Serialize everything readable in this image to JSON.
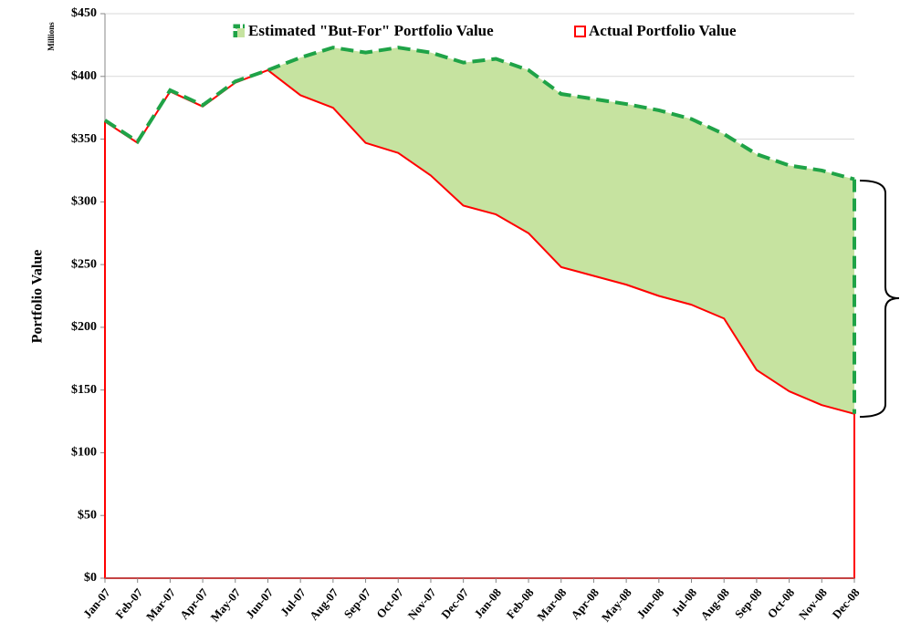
{
  "chart_data": {
    "type": "line",
    "y_label": "Portfolio Value",
    "y_unit_label": "Millions",
    "categories": [
      "Jan-07",
      "Feb-07",
      "Mar-07",
      "Apr-07",
      "May-07",
      "Jun-07",
      "Jul-07",
      "Aug-07",
      "Sep-07",
      "Oct-07",
      "Nov-07",
      "Dec-07",
      "Jan-08",
      "Feb-08",
      "Mar-08",
      "Apr-08",
      "May-08",
      "Jun-08",
      "Jul-08",
      "Aug-08",
      "Sep-08",
      "Oct-08",
      "Nov-08",
      "Dec-08"
    ],
    "series": [
      {
        "name": "Estimated \"But-For\" Portfolio Value",
        "color": "#1fa347",
        "fill": "#c6e3a0",
        "values": [
          365,
          348,
          389,
          377,
          396,
          405,
          415,
          423,
          419,
          423,
          419,
          411,
          414,
          405,
          386,
          382,
          378,
          373,
          366,
          354,
          338,
          329,
          325,
          318
        ]
      },
      {
        "name": "Actual Portfolio Value",
        "color": "#ff0000",
        "values": [
          364,
          347,
          388,
          376,
          395,
          405,
          385,
          375,
          347,
          339,
          321,
          297,
          290,
          275,
          248,
          241,
          234,
          225,
          218,
          207,
          166,
          149,
          138,
          131
        ]
      }
    ],
    "ylim": [
      0,
      450
    ],
    "yticks": [
      {
        "value": 0,
        "label": "$0"
      },
      {
        "value": 50,
        "label": "$50"
      },
      {
        "value": 100,
        "label": "$100"
      },
      {
        "value": 150,
        "label": "$150"
      },
      {
        "value": 200,
        "label": "$200"
      },
      {
        "value": 250,
        "label": "$250"
      },
      {
        "value": 300,
        "label": "$300"
      },
      {
        "value": 350,
        "label": "$350"
      },
      {
        "value": 400,
        "label": "$400"
      },
      {
        "value": 450,
        "label": "$450"
      }
    ],
    "grid": true,
    "legend": "top"
  }
}
